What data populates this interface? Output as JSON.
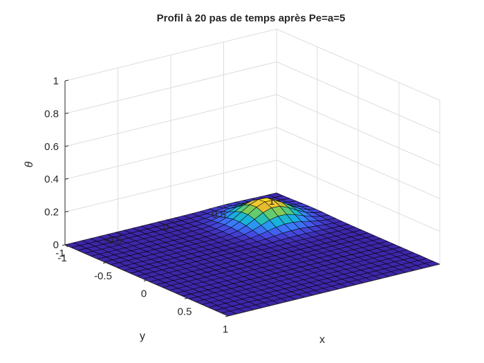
{
  "chart_data": {
    "type": "surface",
    "title": "Profil à  20 pas de temps après Pe=a=5",
    "xlabel": "x",
    "ylabel": "y",
    "zlabel": "θ",
    "xlim": [
      -1,
      1
    ],
    "ylim": [
      -1,
      1
    ],
    "zlim": [
      0,
      1
    ],
    "xticks": [
      "-1",
      "-0.5",
      "0",
      "0.5",
      "1"
    ],
    "yticks": [
      "-1",
      "-0.5",
      "0",
      "0.5",
      "1"
    ],
    "zticks": [
      "0",
      "0.2",
      "0.4",
      "0.6",
      "0.8",
      "1"
    ],
    "grid": true,
    "colormap": "parula",
    "grid_resolution": 26,
    "peak": {
      "x": -0.55,
      "y": 0.55,
      "theta": 0.13
    },
    "peak_sigma": 0.18
  }
}
